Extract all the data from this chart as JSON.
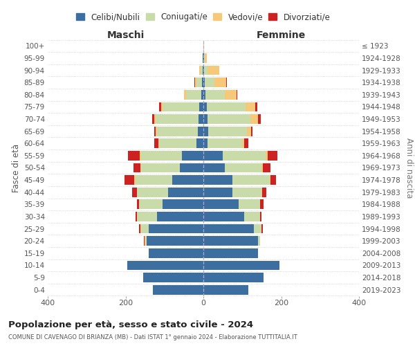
{
  "age_groups": [
    "0-4",
    "5-9",
    "10-14",
    "15-19",
    "20-24",
    "25-29",
    "30-34",
    "35-39",
    "40-44",
    "45-49",
    "50-54",
    "55-59",
    "60-64",
    "65-69",
    "70-74",
    "75-79",
    "80-84",
    "85-89",
    "90-94",
    "95-99",
    "100+"
  ],
  "birth_years": [
    "2019-2023",
    "2014-2018",
    "2009-2013",
    "2004-2008",
    "1999-2003",
    "1994-1998",
    "1989-1993",
    "1984-1988",
    "1979-1983",
    "1974-1978",
    "1969-1973",
    "1964-1968",
    "1959-1963",
    "1954-1958",
    "1949-1953",
    "1944-1948",
    "1939-1943",
    "1934-1938",
    "1929-1933",
    "1924-1928",
    "≤ 1923"
  ],
  "male_celibe": [
    130,
    155,
    195,
    140,
    145,
    140,
    120,
    105,
    90,
    80,
    60,
    55,
    18,
    14,
    12,
    10,
    5,
    3,
    2,
    1,
    0
  ],
  "male_coniugato": [
    0,
    0,
    0,
    0,
    5,
    20,
    50,
    60,
    80,
    95,
    100,
    105,
    95,
    105,
    110,
    95,
    40,
    15,
    5,
    0,
    0
  ],
  "male_vedovo": [
    0,
    0,
    0,
    0,
    1,
    1,
    0,
    1,
    1,
    2,
    2,
    3,
    3,
    3,
    5,
    3,
    5,
    3,
    3,
    0,
    0
  ],
  "male_divorziato": [
    0,
    0,
    0,
    0,
    2,
    5,
    5,
    5,
    12,
    25,
    18,
    30,
    10,
    5,
    5,
    5,
    0,
    2,
    0,
    0,
    0
  ],
  "female_nubile": [
    115,
    155,
    195,
    140,
    140,
    130,
    105,
    90,
    75,
    75,
    55,
    50,
    10,
    12,
    10,
    8,
    5,
    3,
    2,
    2,
    0
  ],
  "female_coniugata": [
    0,
    0,
    0,
    0,
    5,
    20,
    40,
    55,
    75,
    95,
    95,
    110,
    90,
    100,
    110,
    100,
    50,
    25,
    8,
    2,
    0
  ],
  "female_vedova": [
    0,
    0,
    0,
    0,
    0,
    0,
    0,
    1,
    1,
    2,
    3,
    5,
    5,
    10,
    20,
    25,
    30,
    30,
    30,
    5,
    1
  ],
  "female_divorziata": [
    0,
    0,
    0,
    0,
    1,
    3,
    5,
    8,
    10,
    15,
    20,
    25,
    10,
    5,
    8,
    5,
    2,
    2,
    0,
    0,
    0
  ],
  "color_celibe": "#3d6ea0",
  "color_coniugato": "#c8dba8",
  "color_vedovo": "#f5c87a",
  "color_divorziato": "#cc2222",
  "title_main": "Popolazione per età, sesso e stato civile - 2024",
  "title_sub": "COMUNE DI CAVENAGO DI BRIANZA (MB) - Dati ISTAT 1° gennaio 2024 - Elaborazione TUTTITALIA.IT",
  "xlabel_left": "Maschi",
  "xlabel_right": "Femmine",
  "ylabel_left": "Fasce di età",
  "ylabel_right": "Anni di nascita",
  "xlim": 400,
  "background_color": "#ffffff",
  "grid_color": "#cccccc"
}
